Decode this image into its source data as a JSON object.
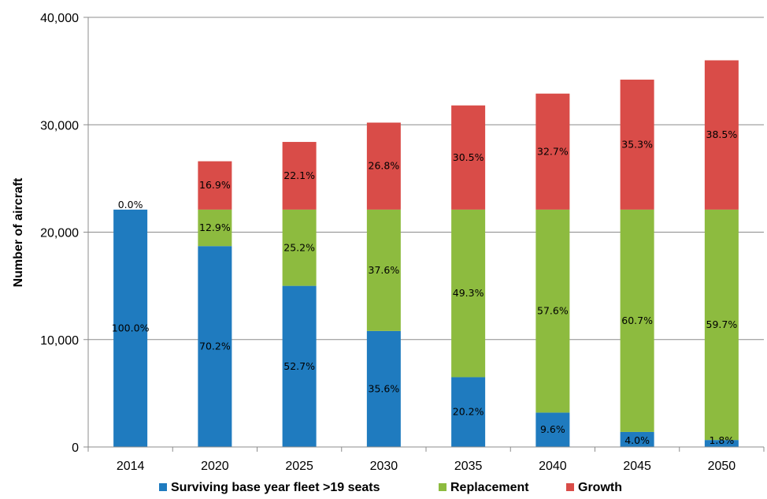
{
  "chart_data": {
    "type": "bar",
    "stacked": true,
    "categories": [
      "2014",
      "2020",
      "2025",
      "2030",
      "2035",
      "2040",
      "2045",
      "2050"
    ],
    "ylabel": "Number of aircraft",
    "xlabel": "",
    "ylim": [
      0,
      40000
    ],
    "yticks": [
      0,
      10000,
      20000,
      30000,
      40000
    ],
    "ytick_labels": [
      "0",
      "10,000",
      "20,000",
      "30,000",
      "40,000"
    ],
    "grid": true,
    "legend_position": "bottom",
    "series": [
      {
        "name": "Surviving base year fleet >19 seats",
        "color": "#1f7bbf",
        "values": [
          22100,
          18700,
          15000,
          10800,
          6500,
          3200,
          1400,
          650
        ],
        "labels": [
          "100.0%",
          "70.2%",
          "52.7%",
          "35.6%",
          "20.2%",
          "9.6%",
          "4.0%",
          "1.8%"
        ]
      },
      {
        "name": "Replacement",
        "color": "#8dbb3f",
        "values": [
          0,
          3400,
          7100,
          11300,
          15600,
          18900,
          20700,
          21450
        ],
        "labels": [
          "",
          "12.9%",
          "25.2%",
          "37.6%",
          "49.3%",
          "57.6%",
          "60.7%",
          "59.7%"
        ]
      },
      {
        "name": "Growth",
        "color": "#d94c48",
        "values": [
          0,
          4500,
          6300,
          8100,
          9700,
          10800,
          12100,
          13900
        ],
        "labels": [
          "0.0%",
          "16.9%",
          "22.1%",
          "26.8%",
          "30.5%",
          "32.7%",
          "35.3%",
          "38.5%"
        ]
      }
    ]
  }
}
